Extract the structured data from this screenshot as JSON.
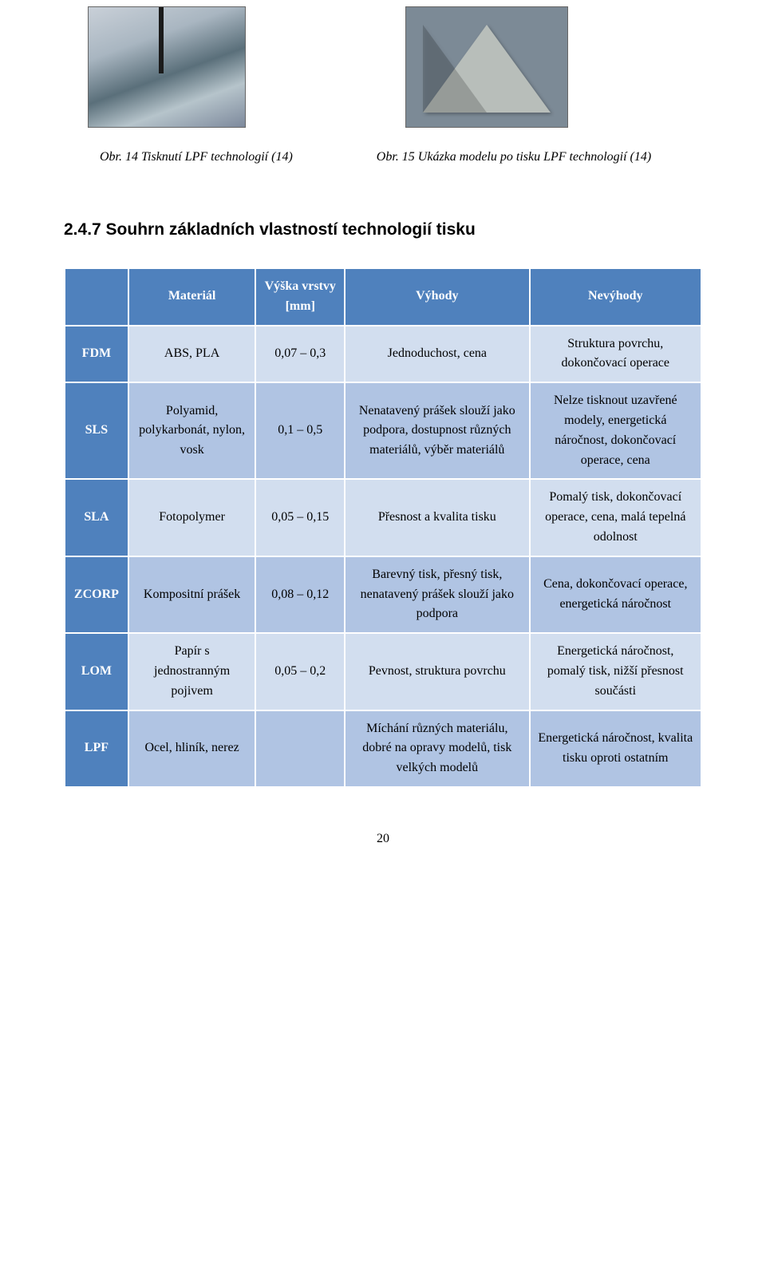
{
  "figures": {
    "left_caption": "Obr. 14 Tisknutí LPF technologií (14)",
    "right_caption": "Obr. 15 Ukázka modelu po tisku LPF technologií (14)"
  },
  "heading": "2.4.7  Souhrn základních vlastností technologií tisku",
  "table": {
    "headers": {
      "blank": "",
      "material": "Materiál",
      "layer": "Výška vrstvy [mm]",
      "adv": "Výhody",
      "dis": "Nevýhody"
    },
    "rows": [
      {
        "code": "FDM",
        "material": "ABS, PLA",
        "layer": "0,07 – 0,3",
        "adv": "Jednoduchost, cena",
        "dis": "Struktura povrchu, dokončovací operace"
      },
      {
        "code": "SLS",
        "material": "Polyamid, polykarbonát, nylon, vosk",
        "layer": "0,1 – 0,5",
        "adv": "Nenatavený prášek slouží jako podpora, dostupnost různých materiálů, výběr materiálů",
        "dis": "Nelze tisknout uzavřené modely, energetická náročnost, dokončovací operace, cena"
      },
      {
        "code": "SLA",
        "material": "Fotopolymer",
        "layer": "0,05 – 0,15",
        "adv": "Přesnost a kvalita tisku",
        "dis": "Pomalý tisk, dokončovací operace, cena, malá tepelná odolnost"
      },
      {
        "code": "ZCORP",
        "material": "Kompositní prášek",
        "layer": "0,08 – 0,12",
        "adv": "Barevný tisk, přesný tisk, nenatavený prášek slouží jako podpora",
        "dis": "Cena, dokončovací operace, energetická náročnost"
      },
      {
        "code": "LOM",
        "material": "Papír s jednostranným pojivem",
        "layer": "0,05 – 0,2",
        "adv": "Pevnost, struktura povrchu",
        "dis": "Energetická náročnost, pomalý tisk, nižší přesnost součásti"
      },
      {
        "code": "LPF",
        "material": "Ocel, hliník, nerez",
        "layer": "",
        "adv": "Míchání různých materiálu, dobré na opravy modelů, tisk velkých modelů",
        "dis": "Energetická náročnost, kvalita tisku oproti ostatním"
      }
    ]
  },
  "page_number": "20",
  "colors": {
    "header_bg": "#4f81bd",
    "row_light": "#d2deef",
    "row_dark": "#b0c4e3"
  }
}
